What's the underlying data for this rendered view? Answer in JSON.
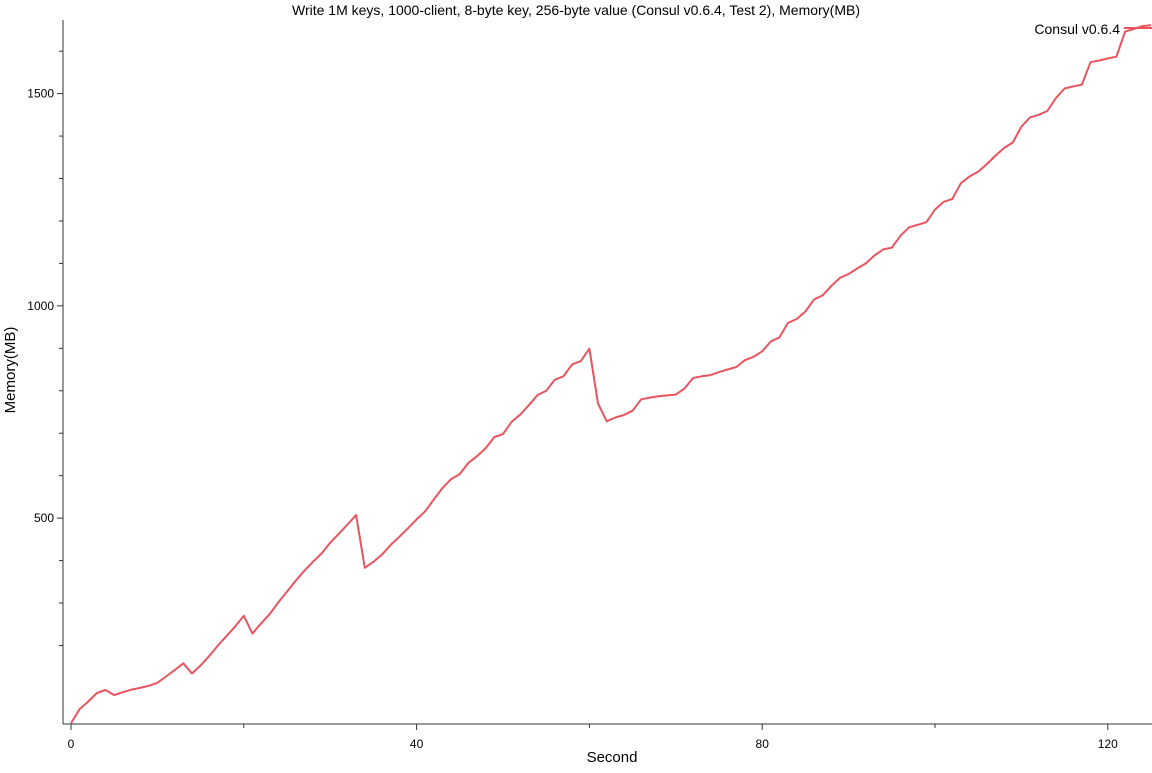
{
  "chart_data": {
    "type": "line",
    "title": "Write 1M keys, 1000-client, 8-byte key, 256-byte value (Consul v0.6.4, Test 2), Memory(MB)",
    "xlabel": "Second",
    "ylabel": "Memory(MB)",
    "xlim": [
      0,
      125
    ],
    "ylim": [
      15,
      1665
    ],
    "x_ticks_major": [
      0,
      40,
      80,
      120
    ],
    "x_ticks_minor": [
      20,
      60,
      100
    ],
    "y_ticks_major": [
      500,
      1000,
      1500
    ],
    "y_ticks_minor": [
      200,
      300,
      400,
      600,
      700,
      800,
      900,
      1100,
      1200,
      1300,
      1400,
      1600
    ],
    "grid": false,
    "legend_position": "top-right",
    "colors": {
      "series": "#e8555f"
    },
    "series": [
      {
        "name": "Consul v0.6.4",
        "x": [
          0,
          1,
          2,
          3,
          4,
          5,
          6,
          7,
          8,
          9,
          10,
          11,
          12,
          13,
          14,
          15,
          16,
          17,
          18,
          19,
          20,
          21,
          22,
          23,
          24,
          25,
          26,
          27,
          28,
          29,
          30,
          31,
          32,
          33,
          34,
          35,
          36,
          37,
          38,
          39,
          40,
          41,
          42,
          43,
          44,
          45,
          46,
          47,
          48,
          49,
          50,
          51,
          52,
          53,
          54,
          55,
          56,
          57,
          58,
          59,
          60,
          61,
          62,
          63,
          64,
          65,
          66,
          67,
          68,
          69,
          70,
          71,
          72,
          73,
          74,
          75,
          76,
          77,
          78,
          79,
          80,
          81,
          82,
          83,
          84,
          85,
          86,
          87,
          88,
          89,
          90,
          91,
          92,
          93,
          94,
          95,
          96,
          97,
          98,
          99,
          100,
          101,
          102,
          103,
          104,
          105,
          106,
          107,
          108,
          109,
          110,
          111,
          112,
          113,
          114,
          115,
          116,
          117,
          118,
          119,
          120,
          121,
          122,
          123,
          124,
          125
        ],
        "values": [
          17,
          50,
          68,
          88,
          95,
          83,
          90,
          96,
          100,
          105,
          112,
          127,
          142,
          158,
          134,
          153,
          175,
          200,
          222,
          245,
          270,
          228,
          252,
          274,
          302,
          327,
          352,
          376,
          397,
          417,
          442,
          463,
          485,
          507,
          383,
          397,
          414,
          437,
          456,
          476,
          497,
          516,
          544,
          571,
          592,
          604,
          630,
          646,
          665,
          691,
          698,
          727,
          744,
          766,
          790,
          800,
          826,
          834,
          862,
          870,
          899,
          770,
          728,
          737,
          743,
          753,
          780,
          784,
          787,
          789,
          791,
          805,
          830,
          834,
          837,
          844,
          850,
          856,
          872,
          880,
          893,
          916,
          926,
          960,
          969,
          987,
          1015,
          1025,
          1047,
          1066,
          1075,
          1088,
          1100,
          1119,
          1133,
          1137,
          1165,
          1185,
          1191,
          1197,
          1227,
          1245,
          1252,
          1289,
          1305,
          1316,
          1334,
          1354,
          1372,
          1385,
          1422,
          1444,
          1450,
          1459,
          1490,
          1512,
          1517,
          1521,
          1574,
          1578,
          1583,
          1587,
          1646,
          1652,
          1659,
          1661
        ]
      }
    ]
  }
}
